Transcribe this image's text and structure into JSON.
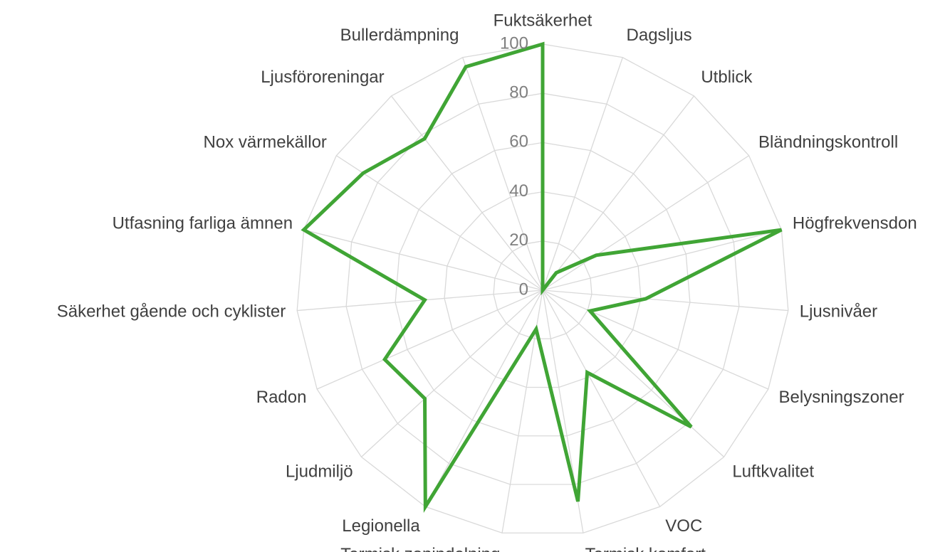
{
  "chart_data": {
    "type": "radar",
    "categories": [
      "Fuktsäkerhet",
      "Dagsljus",
      "Utblick",
      "Bländningskontroll",
      "Högfrekvensdon",
      "Ljusnivåer",
      "Belysningszoner",
      "Luftkvalitet",
      "VOC",
      "Termisk komfort",
      "Termisk zonindelning",
      "Legionella",
      "Ljudmiljö",
      "Radon",
      "Säkerhet gående och cyklister",
      "Utfasning farliga ämnen",
      "Nox värmekällor",
      "Ljusföroreningar",
      "Bullerdämpning"
    ],
    "values": [
      100,
      0,
      9,
      26,
      100,
      42,
      21,
      82,
      38,
      87,
      16,
      100,
      65,
      70,
      48,
      100,
      87,
      78,
      96
    ],
    "color": "#40a535",
    "ylim": [
      0,
      100
    ],
    "yticks": [
      0,
      20,
      40,
      60,
      80,
      100
    ],
    "grid": true
  }
}
